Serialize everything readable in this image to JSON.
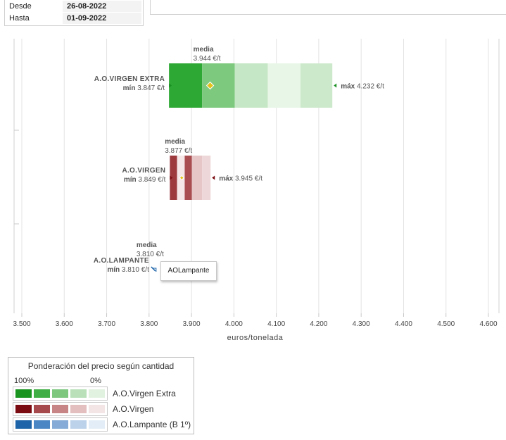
{
  "dates": {
    "desde_label": "Desde",
    "desde_value": "26-08-2022",
    "hasta_label": "Hasta",
    "hasta_value": "01-09-2022"
  },
  "tooltip": "AOLampante",
  "legend": {
    "title": "Ponderación del precio según cantidad",
    "pct_high": "100%",
    "pct_low": "0%",
    "rows": [
      {
        "label": "A.O.Virgen Extra",
        "colors": [
          "#18941f",
          "#3fae45",
          "#7ec77f",
          "#b9e0b9",
          "#e1f2e0"
        ]
      },
      {
        "label": "A.O.Virgen",
        "colors": [
          "#7b0d12",
          "#a74a4d",
          "#c78586",
          "#e3bfc0",
          "#f3e4e5"
        ]
      },
      {
        "label": "A.O.Lampante (B 1º)",
        "colors": [
          "#1d64a8",
          "#4b86c4",
          "#85abd6",
          "#bcd2ea",
          "#e3edf7"
        ]
      }
    ]
  },
  "chart_data": {
    "type": "range-bar",
    "xlabel": "euros/tonelada",
    "xlim": [
      3500,
      4600
    ],
    "xticks": [
      3500,
      3600,
      3700,
      3800,
      3900,
      4000,
      4100,
      4200,
      4300,
      4400,
      4500,
      4600
    ],
    "xtick_labels": [
      "3.500",
      "3.600",
      "3.700",
      "3.800",
      "3.900",
      "4.000",
      "4.100",
      "4.200",
      "4.300",
      "4.400",
      "4.500",
      "4.600"
    ],
    "grid": true,
    "series": [
      {
        "name": "A.O.VIRGEN EXTRA",
        "min": 3847,
        "min_label": "mín",
        "min_text": "3.847 €/t",
        "max": 4232,
        "max_label": "máx",
        "max_text": "4.232 €/t",
        "mean": 3944,
        "mean_label": "media",
        "mean_text": "3.944 €/t",
        "bands": [
          {
            "from": 3847,
            "to": 3925,
            "color": "#2ea834"
          },
          {
            "from": 3925,
            "to": 4002,
            "color": "#7dc97d"
          },
          {
            "from": 4002,
            "to": 4080,
            "color": "#c6e7c5"
          },
          {
            "from": 4080,
            "to": 4157,
            "color": "#e8f6e7"
          },
          {
            "from": 4157,
            "to": 4232,
            "color": "#cde9cb"
          }
        ],
        "marker_color": "#1a8f22"
      },
      {
        "name": "A.O.VIRGEN",
        "min": 3849,
        "min_label": "mín",
        "min_text": "3.849 €/t",
        "max": 3945,
        "max_label": "máx",
        "max_text": "3.945 €/t",
        "mean": 3877,
        "mean_label": "media",
        "mean_text": "3.877 €/t",
        "bands": [
          {
            "from": 3849,
            "to": 3866,
            "color": "#9c3a3e"
          },
          {
            "from": 3866,
            "to": 3884,
            "color": "#f5e6e7"
          },
          {
            "from": 3884,
            "to": 3901,
            "color": "#a94d50"
          },
          {
            "from": 3901,
            "to": 3925,
            "color": "#e6c6c7"
          },
          {
            "from": 3925,
            "to": 3945,
            "color": "#eed7d8"
          }
        ],
        "marker_color": "#7b0d12"
      },
      {
        "name": "A.O.LAMPANTE",
        "min": 3810,
        "min_label": "mín",
        "min_text": "3.810 €/t",
        "max": 3810,
        "max_label": "",
        "max_text": "",
        "mean": 3810,
        "mean_label": "media",
        "mean_text": "3.810 €/t",
        "bands": [],
        "marker_color": "#1d64a8"
      }
    ]
  }
}
